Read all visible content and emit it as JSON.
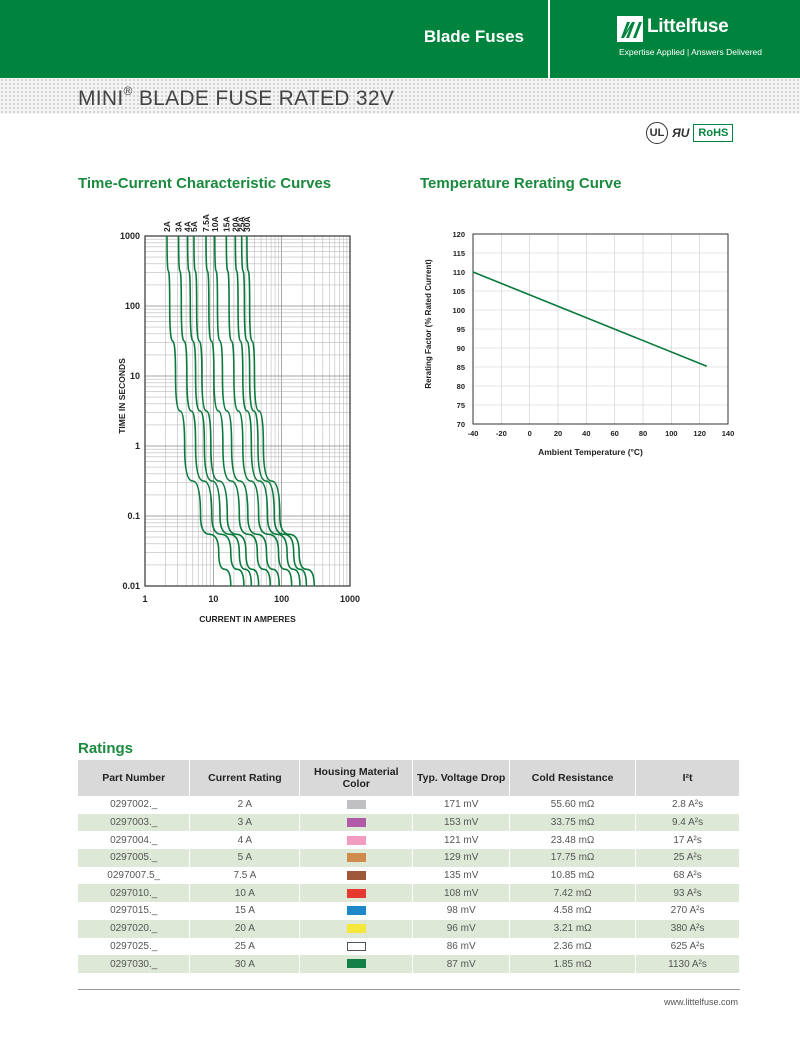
{
  "header": {
    "section": "Blade Fuses",
    "logo_name": "Littelfuse",
    "tagline": "Expertise Applied  |  Answers Delivered"
  },
  "title": {
    "main": "MINI",
    "sup": "®",
    "rest": " BLADE FUSE RATED 32V"
  },
  "certs": {
    "ul": "UL",
    "ru": "ЯU",
    "rohs": "RoHS"
  },
  "tcc": {
    "heading": "Time-Current Characteristic Curves",
    "chart_data": {
      "type": "line",
      "x_scale": "log",
      "y_scale": "log",
      "xlabel": "CURRENT IN AMPERES",
      "ylabel": "TIME IN SECONDS",
      "xlim": [
        1,
        1000
      ],
      "ylim": [
        0.01,
        1000
      ],
      "x_ticks": [
        "1",
        "10",
        "100",
        "1000"
      ],
      "y_ticks": [
        "0.01",
        "0.1",
        "1",
        "10",
        "100",
        "1000"
      ],
      "grid": true,
      "series": [
        {
          "name": "2A",
          "x": [
            2.1,
            2.3,
            2.8,
            3.8,
            6.5,
            12,
            18
          ],
          "y": [
            1000,
            100,
            10,
            1,
            0.1,
            0.03,
            0.01
          ]
        },
        {
          "name": "3A",
          "x": [
            3.1,
            3.4,
            4.1,
            5.5,
            9.5,
            18,
            28
          ],
          "y": [
            1000,
            100,
            10,
            1,
            0.1,
            0.03,
            0.01
          ]
        },
        {
          "name": "4A",
          "x": [
            4.2,
            4.6,
            5.5,
            7.4,
            12.5,
            24,
            36
          ],
          "y": [
            1000,
            100,
            10,
            1,
            0.1,
            0.03,
            0.01
          ]
        },
        {
          "name": "5A",
          "x": [
            5.2,
            5.7,
            6.8,
            9.2,
            16,
            30,
            46
          ],
          "y": [
            1000,
            100,
            10,
            1,
            0.1,
            0.03,
            0.01
          ]
        },
        {
          "name": "7.5A",
          "x": [
            7.8,
            8.6,
            10.2,
            13.8,
            24,
            44,
            68
          ],
          "y": [
            1000,
            100,
            10,
            1,
            0.1,
            0.03,
            0.01
          ]
        },
        {
          "name": "10A",
          "x": [
            10.5,
            11.5,
            13.6,
            18.5,
            32,
            60,
            92
          ],
          "y": [
            1000,
            100,
            10,
            1,
            0.1,
            0.03,
            0.01
          ]
        },
        {
          "name": "15A",
          "x": [
            15.5,
            17,
            20,
            27,
            46,
            90,
            140
          ],
          "y": [
            1000,
            100,
            10,
            1,
            0.1,
            0.03,
            0.01
          ]
        },
        {
          "name": "20A",
          "x": [
            21,
            23,
            27,
            36,
            62,
            120,
            185
          ],
          "y": [
            1000,
            100,
            10,
            1,
            0.1,
            0.03,
            0.01
          ]
        },
        {
          "name": "25A",
          "x": [
            26,
            28.5,
            34,
            45,
            78,
            150,
            230
          ],
          "y": [
            1000,
            100,
            10,
            1,
            0.1,
            0.03,
            0.01
          ]
        },
        {
          "name": "30A",
          "x": [
            31,
            34,
            40,
            54,
            94,
            180,
            300
          ],
          "y": [
            1000,
            100,
            10,
            1,
            0.1,
            0.03,
            0.01
          ]
        }
      ]
    }
  },
  "rerating": {
    "heading": "Temperature Rerating Curve",
    "chart_data": {
      "type": "line",
      "xlabel": "Ambient Temperature (°C)",
      "ylabel": "Rerating Factor (% Rated Current)",
      "xlim": [
        -40,
        140
      ],
      "ylim": [
        70,
        120
      ],
      "x_ticks": [
        "-40",
        "-20",
        "0",
        "20",
        "40",
        "60",
        "80",
        "100",
        "120",
        "140"
      ],
      "y_ticks": [
        "70",
        "75",
        "80",
        "85",
        "90",
        "95",
        "100",
        "105",
        "110",
        "115",
        "120"
      ],
      "grid": true,
      "series": [
        {
          "x": [
            -40,
            125
          ],
          "y": [
            110,
            85.2
          ]
        }
      ]
    }
  },
  "ratings": {
    "heading": "Ratings",
    "columns": [
      "Part Number",
      "Current Rating",
      "Housing Material Color",
      "Typ. Voltage Drop",
      "Cold Resistance",
      "I²t"
    ],
    "rows": [
      {
        "part": "0297002._",
        "current": "2 A",
        "color": "#c0c0c3",
        "vdrop": "171 mV",
        "res": "55.60 mΩ",
        "i2t": "2.8 A²s"
      },
      {
        "part": "0297003._",
        "current": "3 A",
        "color": "#b05aa8",
        "vdrop": "153 mV",
        "res": "33.75 mΩ",
        "i2t": "9.4 A²s"
      },
      {
        "part": "0297004._",
        "current": "4 A",
        "color": "#f19bc1",
        "vdrop": "121 mV",
        "res": "23.48 mΩ",
        "i2t": "17 A²s"
      },
      {
        "part": "0297005._",
        "current": "5 A",
        "color": "#d08a4c",
        "vdrop": "129 mV",
        "res": "17.75 mΩ",
        "i2t": "25 A²s"
      },
      {
        "part": "0297007.5_",
        "current": "7.5 A",
        "color": "#9c5838",
        "vdrop": "135 mV",
        "res": "10.85 mΩ",
        "i2t": "68 A²s"
      },
      {
        "part": "0297010._",
        "current": "10 A",
        "color": "#e63a2e",
        "vdrop": "108 mV",
        "res": "7.42 mΩ",
        "i2t": "93 A²s"
      },
      {
        "part": "0297015._",
        "current": "15 A",
        "color": "#1e88c8",
        "vdrop": "98 mV",
        "res": "4.58 mΩ",
        "i2t": "270 A²s"
      },
      {
        "part": "0297020._",
        "current": "20 A",
        "color": "#f5e83a",
        "vdrop": "96 mV",
        "res": "3.21 mΩ",
        "i2t": "380 A²s"
      },
      {
        "part": "0297025._",
        "current": "25 A",
        "color": "#ffffff",
        "vdrop": "86 mV",
        "res": "2.36 mΩ",
        "i2t": "625 A²s"
      },
      {
        "part": "0297030._",
        "current": "30 A",
        "color": "#128047",
        "vdrop": "87 mV",
        "res": "1.85 mΩ",
        "i2t": "1130 A²s"
      }
    ]
  },
  "footer": {
    "url": "www.littelfuse.com"
  }
}
